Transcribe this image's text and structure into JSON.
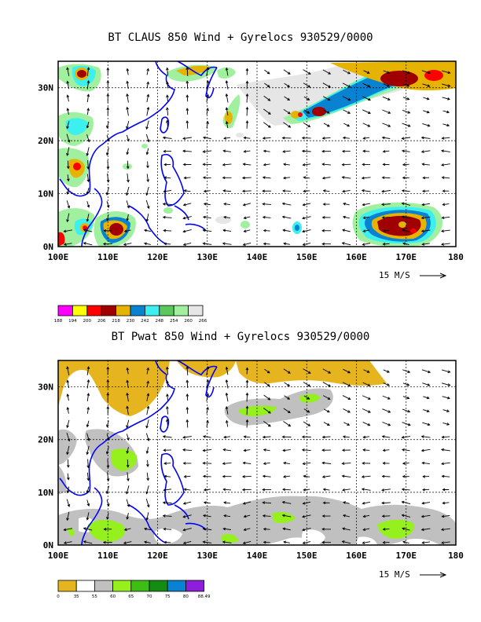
{
  "chart_data": [
    {
      "type": "vector-map",
      "title": "BT CLAUS 850 Wind + Gyrelocs 930529/0000",
      "x_ticks": [
        "100E",
        "110E",
        "120E",
        "130E",
        "140E",
        "150E",
        "160E",
        "170E",
        "180"
      ],
      "y_ticks": [
        "0N",
        "10N",
        "20N",
        "30N"
      ],
      "xlim": [
        100,
        180
      ],
      "ylim": [
        0,
        35
      ],
      "reference_vector": "15 M/S",
      "colorbar": {
        "levels": [
          "188",
          "194",
          "200",
          "206",
          "218",
          "230",
          "242",
          "248",
          "254",
          "260",
          "266"
        ],
        "colors": [
          "#ff00ff",
          "#ffff00",
          "#ff0000",
          "#a00000",
          "#e6b400",
          "#0a82d2",
          "#3cf0f0",
          "#5ac85a",
          "#a0f0a0",
          "#e6e6e6"
        ]
      },
      "features": [
        {
          "name": "convection-ne-band",
          "lon": [
            145,
            180
          ],
          "lat": [
            22,
            35
          ]
        },
        {
          "name": "convection-east",
          "lon": [
            162,
            178
          ],
          "lat": [
            2,
            8
          ]
        },
        {
          "name": "convection-west",
          "lon": [
            100,
            115
          ],
          "lat": [
            0,
            35
          ]
        }
      ]
    },
    {
      "type": "vector-map",
      "title": "BT Pwat 850 Wind + Gyrelocs 930529/0000",
      "x_ticks": [
        "100E",
        "110E",
        "120E",
        "130E",
        "140E",
        "150E",
        "160E",
        "170E",
        "180"
      ],
      "y_ticks": [
        "0N",
        "10N",
        "20N",
        "30N"
      ],
      "xlim": [
        100,
        180
      ],
      "ylim": [
        0,
        35
      ],
      "reference_vector": "15 M/S",
      "colorbar": {
        "levels": [
          "0",
          "35",
          "55",
          "60",
          "65",
          "70",
          "75",
          "80",
          "88.49"
        ],
        "colors": [
          "#e6b41e",
          "#ffffff",
          "#c0c0c0",
          "#96f01e",
          "#3cbe14",
          "#148c14",
          "#0a82d2",
          "#8c1edc"
        ]
      }
    }
  ]
}
